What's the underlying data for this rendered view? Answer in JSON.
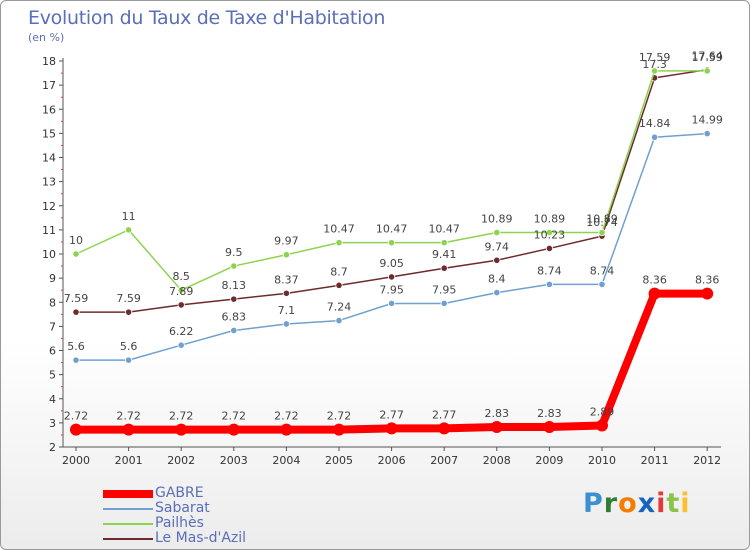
{
  "header": {
    "title": "Evolution du Taux de Taxe d'Habitation",
    "subtitle": "(en %)"
  },
  "logo": {
    "text": "Proxiti",
    "letters": [
      "P",
      "r",
      "o",
      "x",
      "i",
      "t",
      "i"
    ],
    "colors": [
      "#3c8fd0",
      "#2e7d32",
      "#f57c00",
      "#1565c0",
      "#e53935",
      "#8bc34a",
      "#fbc02d"
    ]
  },
  "chart_data": {
    "type": "line",
    "x": [
      "2000",
      "2001",
      "2002",
      "2003",
      "2004",
      "2005",
      "2006",
      "2007",
      "2008",
      "2009",
      "2010",
      "2011",
      "2012"
    ],
    "yticks": [
      "2",
      "3",
      "4",
      "5",
      "6",
      "7",
      "8",
      "9",
      "10",
      "11",
      "12",
      "13",
      "14",
      "15",
      "16",
      "17",
      "18"
    ],
    "ylim": [
      2,
      18
    ],
    "grid": false,
    "legend_position": "bottom-left",
    "series": [
      {
        "name": "GABRE",
        "color": "#ff0000",
        "values": [
          2.72,
          2.72,
          2.72,
          2.72,
          2.72,
          2.72,
          2.77,
          2.77,
          2.83,
          2.83,
          2.89,
          8.36,
          8.36
        ],
        "labels": [
          "2.72",
          "2.72",
          "2.72",
          "2.72",
          "2.72",
          "2.72",
          "2.77",
          "2.77",
          "2.83",
          "2.83",
          "2.89",
          "8.36",
          "8.36"
        ]
      },
      {
        "name": "Sabarat",
        "color": "#6fa0cf",
        "values": [
          5.6,
          5.6,
          6.22,
          6.83,
          7.1,
          7.24,
          7.95,
          7.95,
          8.4,
          8.74,
          8.74,
          14.84,
          14.99
        ],
        "labels": [
          "5.6",
          "5.6",
          "6.22",
          "6.83",
          "7.1",
          "7.24",
          "7.95",
          "7.95",
          "8.4",
          "8.74",
          "8.74",
          "14.84",
          "14.99"
        ]
      },
      {
        "name": "Pailhès",
        "color": "#8ed34f",
        "values": [
          10,
          11,
          8.5,
          9.5,
          9.97,
          10.47,
          10.47,
          10.47,
          10.89,
          10.89,
          10.89,
          17.59,
          17.59
        ],
        "labels": [
          "10",
          "11",
          "8.5",
          "9.5",
          "9.97",
          "10.47",
          "10.47",
          "10.47",
          "10.89",
          "10.89",
          "10.89",
          "17.59",
          "17.59"
        ]
      },
      {
        "name": "Le Mas-d'Azil",
        "color": "#6e2b2b",
        "values": [
          7.59,
          7.59,
          7.89,
          8.13,
          8.37,
          8.7,
          9.05,
          9.41,
          9.74,
          10.23,
          10.74,
          17.3,
          17.64
        ],
        "labels": [
          "7.59",
          "7.59",
          "7.89",
          "8.13",
          "8.37",
          "8.7",
          "9.05",
          "9.41",
          "9.74",
          "10.23",
          "10.74",
          "17.3",
          "17.64"
        ]
      }
    ]
  }
}
